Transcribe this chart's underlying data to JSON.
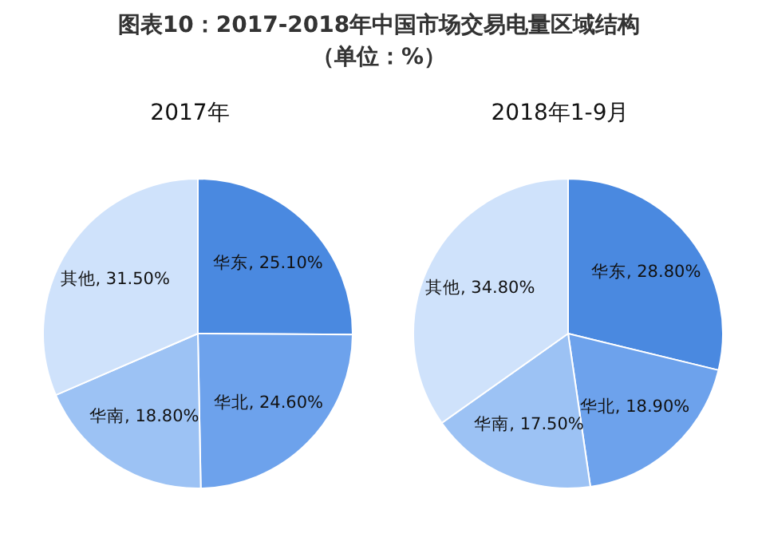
{
  "chart_data": [
    {
      "type": "pie",
      "title": "图表10：2017-2018年中国市场交易电量区域结构（单位：%）",
      "subtitle": "2017年",
      "categories": [
        "华东",
        "华北",
        "华南",
        "其他"
      ],
      "values": [
        25.1,
        24.6,
        18.8,
        31.5
      ],
      "value_labels": [
        "25.10%",
        "24.60%",
        "18.80%",
        "31.50%"
      ],
      "colors": [
        "#4a89e0",
        "#6da2ec",
        "#9cc2f4",
        "#cfe2fb"
      ],
      "legend": false
    },
    {
      "type": "pie",
      "subtitle": "2018年1-9月",
      "categories": [
        "华东",
        "华北",
        "华南",
        "其他"
      ],
      "values": [
        28.8,
        18.9,
        17.5,
        34.8
      ],
      "value_labels": [
        "28.80%",
        "18.90%",
        "17.50%",
        "34.80%"
      ],
      "colors": [
        "#4a89e0",
        "#6da2ec",
        "#9cc2f4",
        "#cfe2fb"
      ],
      "legend": false
    }
  ]
}
